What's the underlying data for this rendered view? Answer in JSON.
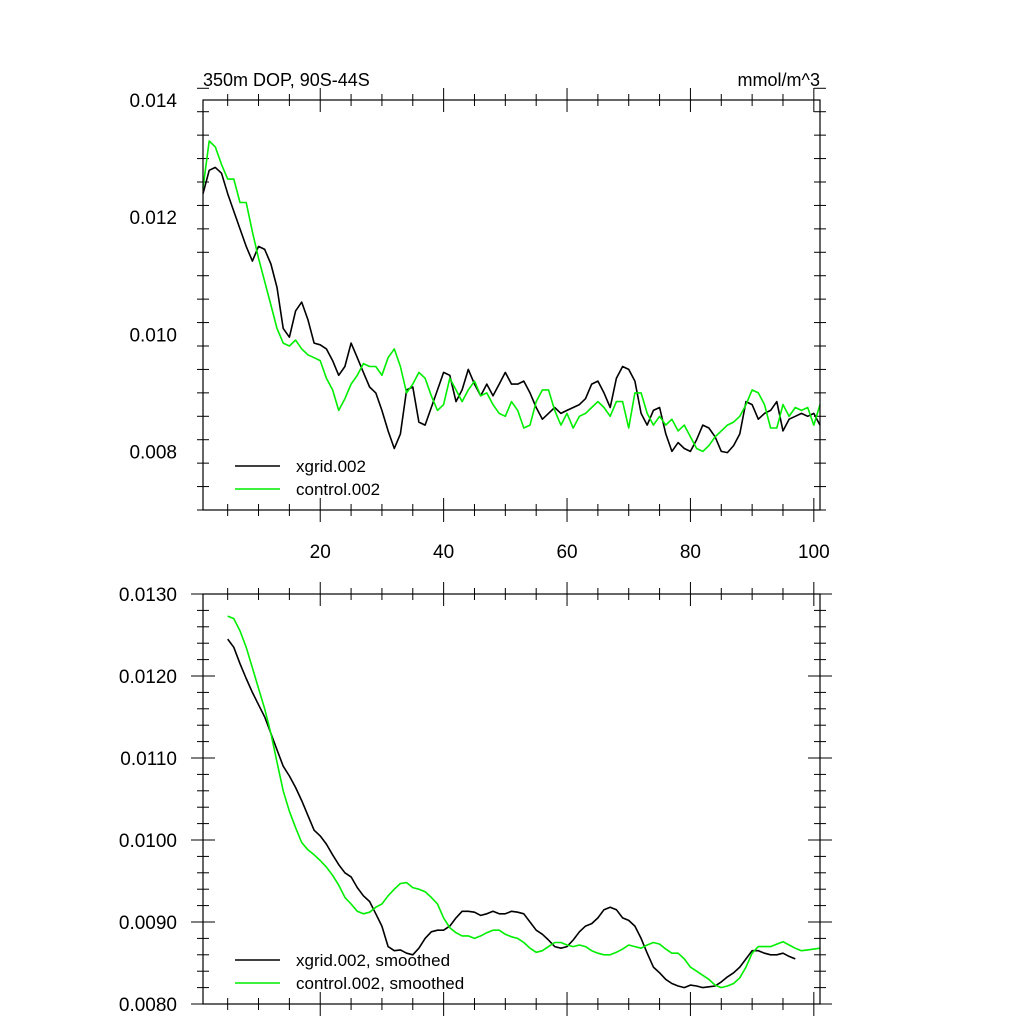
{
  "chart_data": [
    {
      "type": "line",
      "title": "350m DOP, 90S-44S",
      "units": "mmol/m^3",
      "xlim": [
        1,
        101
      ],
      "ylim": [
        0.007,
        0.014
      ],
      "xticks": [
        20,
        40,
        60,
        80,
        100
      ],
      "xtick_labels": [
        "20",
        "40",
        "60",
        "80",
        "100"
      ],
      "yticks": [
        0.008,
        0.01,
        0.012,
        0.014
      ],
      "ytick_labels": [
        "0.008",
        "0.010",
        "0.012",
        "0.014"
      ],
      "legend_position": "bottom-left",
      "series": [
        {
          "name": "xgrid.002",
          "color": "#000000",
          "x_start": 1,
          "values": [
            0.0124,
            0.0128,
            0.01285,
            0.01275,
            0.0124,
            0.0121,
            0.0118,
            0.0115,
            0.01125,
            0.0115,
            0.01145,
            0.0112,
            0.0108,
            0.0101,
            0.00995,
            0.0104,
            0.01055,
            0.01025,
            0.00985,
            0.00982,
            0.00975,
            0.00955,
            0.0093,
            0.00945,
            0.00985,
            0.0096,
            0.00935,
            0.0091,
            0.009,
            0.0087,
            0.00835,
            0.00805,
            0.0083,
            0.00905,
            0.0091,
            0.0085,
            0.00845,
            0.00875,
            0.00905,
            0.00935,
            0.0093,
            0.00885,
            0.00905,
            0.0094,
            0.00915,
            0.00895,
            0.00915,
            0.00895,
            0.00915,
            0.00935,
            0.00915,
            0.00915,
            0.0092,
            0.009,
            0.00875,
            0.00855,
            0.00865,
            0.00875,
            0.00865,
            0.0087,
            0.00875,
            0.0088,
            0.0089,
            0.00915,
            0.0092,
            0.009,
            0.00875,
            0.00925,
            0.00945,
            0.0094,
            0.0092,
            0.00865,
            0.00845,
            0.0087,
            0.00875,
            0.0083,
            0.008,
            0.00815,
            0.00805,
            0.008,
            0.0082,
            0.00845,
            0.0084,
            0.00825,
            0.008,
            0.00798,
            0.0081,
            0.0083,
            0.00885,
            0.0088,
            0.00855,
            0.00865,
            0.0087,
            0.00885,
            0.00835,
            0.00855,
            0.0086,
            0.00865,
            0.0086,
            0.00865,
            0.00845
          ]
        },
        {
          "name": "control.002",
          "color": "#00ee00",
          "x_start": 1,
          "values": [
            0.0125,
            0.0133,
            0.0132,
            0.0129,
            0.01265,
            0.01265,
            0.01225,
            0.01225,
            0.01175,
            0.0113,
            0.0109,
            0.0105,
            0.0101,
            0.00985,
            0.0098,
            0.0099,
            0.00975,
            0.00965,
            0.0096,
            0.00955,
            0.00925,
            0.00905,
            0.0087,
            0.0089,
            0.00915,
            0.0093,
            0.0095,
            0.00945,
            0.00945,
            0.0093,
            0.0096,
            0.00975,
            0.00945,
            0.009,
            0.00915,
            0.00935,
            0.00925,
            0.00895,
            0.0087,
            0.0088,
            0.00925,
            0.00905,
            0.00885,
            0.00905,
            0.0092,
            0.00895,
            0.009,
            0.0088,
            0.00865,
            0.0086,
            0.00885,
            0.0087,
            0.0084,
            0.00845,
            0.00885,
            0.00905,
            0.00905,
            0.0087,
            0.00845,
            0.00865,
            0.0084,
            0.0086,
            0.00865,
            0.00875,
            0.00885,
            0.00875,
            0.0086,
            0.00885,
            0.00885,
            0.0084,
            0.009,
            0.009,
            0.00865,
            0.00845,
            0.0086,
            0.00845,
            0.00855,
            0.00835,
            0.00845,
            0.00825,
            0.00805,
            0.008,
            0.0081,
            0.00825,
            0.00835,
            0.00845,
            0.0085,
            0.0086,
            0.0088,
            0.00905,
            0.009,
            0.0088,
            0.0084,
            0.0084,
            0.0088,
            0.0086,
            0.00875,
            0.0087,
            0.00875,
            0.00845,
            0.0088
          ]
        }
      ]
    },
    {
      "type": "line",
      "xlim": [
        1,
        101
      ],
      "ylim": [
        0.008,
        0.013
      ],
      "xticks": [
        20,
        40,
        60,
        80,
        100
      ],
      "yticks": [
        0.008,
        0.009,
        0.01,
        0.011,
        0.012,
        0.013
      ],
      "ytick_labels": [
        "0.0080",
        "0.0090",
        "0.0100",
        "0.0110",
        "0.0120",
        "0.0130"
      ],
      "legend_position": "bottom-left",
      "series": [
        {
          "name": "xgrid.002, smoothed",
          "color": "#000000",
          "x_start": 5,
          "values": [
            0.01245,
            0.01235,
            0.01215,
            0.01197,
            0.0118,
            0.01165,
            0.0115,
            0.0113,
            0.0111,
            0.0109,
            0.01078,
            0.01064,
            0.01048,
            0.0103,
            0.01012,
            0.01005,
            0.00995,
            0.00982,
            0.0097,
            0.0096,
            0.00955,
            0.00942,
            0.00932,
            0.00925,
            0.0091,
            0.00895,
            0.0087,
            0.00865,
            0.00866,
            0.00862,
            0.0086,
            0.00868,
            0.0088,
            0.00888,
            0.0089,
            0.0089,
            0.00895,
            0.00905,
            0.00913,
            0.00913,
            0.00912,
            0.00908,
            0.0091,
            0.00913,
            0.0091,
            0.0091,
            0.00913,
            0.00912,
            0.0091,
            0.009,
            0.0089,
            0.00885,
            0.00878,
            0.0087,
            0.00868,
            0.0087,
            0.00878,
            0.00888,
            0.00895,
            0.00898,
            0.00905,
            0.00915,
            0.00918,
            0.00915,
            0.00905,
            0.00902,
            0.00895,
            0.0088,
            0.00862,
            0.00845,
            0.00838,
            0.0083,
            0.00825,
            0.00822,
            0.0082,
            0.00823,
            0.00822,
            0.0082,
            0.00821,
            0.00822,
            0.00827,
            0.00833,
            0.00838,
            0.00845,
            0.00855,
            0.00865,
            0.00865,
            0.00862,
            0.0086,
            0.0086,
            0.00862,
            0.00858,
            0.00855
          ]
        },
        {
          "name": "control.002, smoothed",
          "color": "#00ee00",
          "x_start": 5,
          "values": [
            0.01273,
            0.0127,
            0.01255,
            0.01235,
            0.0121,
            0.01185,
            0.0116,
            0.0113,
            0.01095,
            0.0106,
            0.01035,
            0.01015,
            0.00997,
            0.00988,
            0.00982,
            0.00975,
            0.00967,
            0.00957,
            0.00945,
            0.0093,
            0.00922,
            0.00913,
            0.0091,
            0.00912,
            0.00918,
            0.00922,
            0.00932,
            0.0094,
            0.00947,
            0.00948,
            0.00942,
            0.0094,
            0.00937,
            0.0093,
            0.00922,
            0.00905,
            0.00893,
            0.00887,
            0.00883,
            0.00883,
            0.0088,
            0.00883,
            0.00887,
            0.0089,
            0.0089,
            0.00885,
            0.00882,
            0.0088,
            0.00875,
            0.00868,
            0.00863,
            0.00865,
            0.0087,
            0.00875,
            0.00875,
            0.00872,
            0.0087,
            0.00872,
            0.0087,
            0.00865,
            0.00862,
            0.0086,
            0.0086,
            0.00863,
            0.00867,
            0.00872,
            0.0087,
            0.00868,
            0.00872,
            0.00875,
            0.00873,
            0.00867,
            0.00862,
            0.00862,
            0.00855,
            0.00845,
            0.0084,
            0.00835,
            0.0083,
            0.00823,
            0.0082,
            0.00822,
            0.00825,
            0.00832,
            0.00845,
            0.00862,
            0.0087,
            0.0087,
            0.0087,
            0.00873,
            0.00876,
            0.00872,
            0.00868,
            0.00865,
            0.00866,
            0.00867,
            0.00868
          ]
        }
      ]
    }
  ]
}
